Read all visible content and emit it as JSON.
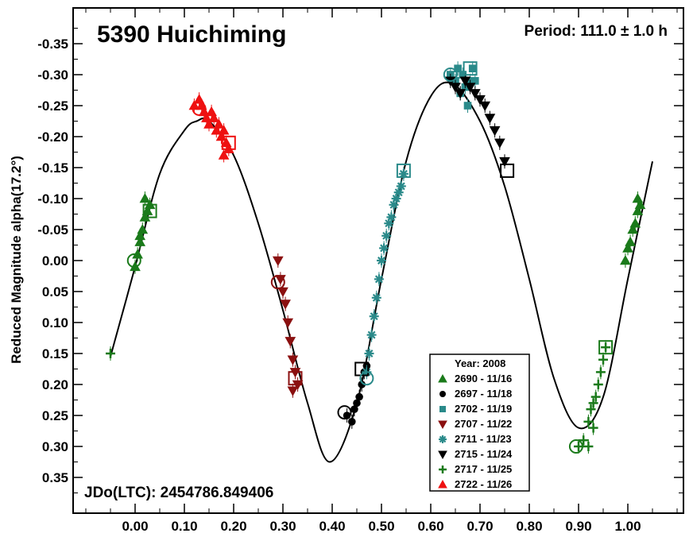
{
  "chart_data": {
    "type": "scatter",
    "title": "5390 Huichiming",
    "period_label": "Period: 111.0 ± 1.0 h",
    "epoch_label": "JDo(LTC): 2454786.849406",
    "ylabel": "Reduced Magnitude alpha(17.2°)",
    "xlabel": "",
    "xlim": [
      -0.12,
      1.12
    ],
    "ylim": [
      0.4,
      -0.4
    ],
    "y_inverted": true,
    "x_ticks": [
      "0.00",
      "0.10",
      "0.20",
      "0.30",
      "0.40",
      "0.50",
      "0.60",
      "0.70",
      "0.80",
      "0.90",
      "1.00"
    ],
    "x_tick_values": [
      0.0,
      0.1,
      0.2,
      0.3,
      0.4,
      0.5,
      0.6,
      0.7,
      0.8,
      0.9,
      1.0
    ],
    "y_ticks": [
      "-0.35",
      "-0.30",
      "-0.25",
      "-0.20",
      "-0.15",
      "-0.10",
      "-0.05",
      "0.00",
      "0.05",
      "0.10",
      "0.15",
      "0.20",
      "0.25",
      "0.30",
      "0.35"
    ],
    "y_tick_values": [
      -0.35,
      -0.3,
      -0.25,
      -0.2,
      -0.15,
      -0.1,
      -0.05,
      0.0,
      0.05,
      0.1,
      0.15,
      0.2,
      0.25,
      0.3,
      0.35
    ],
    "legend": {
      "title": "Year: 2008",
      "placement": "bottom-right",
      "entries": [
        {
          "label": "2690 - 11/16",
          "marker": "triangle-up",
          "color": "#1a7a1a"
        },
        {
          "label": "2697 - 11/18",
          "marker": "circle",
          "color": "#000000"
        },
        {
          "label": "2702 - 11/19",
          "marker": "square",
          "color": "#2a8a8a"
        },
        {
          "label": "2707 - 11/22",
          "marker": "triangle-down",
          "color": "#8b1010"
        },
        {
          "label": "2711 - 11/23",
          "marker": "asterisk",
          "color": "#2a8a8a"
        },
        {
          "label": "2715 - 11/24",
          "marker": "triangle-down",
          "color": "#000000"
        },
        {
          "label": "2717 - 11/25",
          "marker": "plus",
          "color": "#1a7a1a"
        },
        {
          "label": "2722 - 11/26",
          "marker": "triangle-up",
          "color": "#ee1111"
        }
      ]
    },
    "fit_curve": {
      "x": [
        -0.05,
        0.0,
        0.05,
        0.1,
        0.125,
        0.15,
        0.2,
        0.25,
        0.3,
        0.35,
        0.395,
        0.45,
        0.5,
        0.55,
        0.6,
        0.645,
        0.7,
        0.75,
        0.8,
        0.85,
        0.9,
        0.95,
        1.0,
        1.05
      ],
      "y": [
        0.155,
        0.01,
        -0.14,
        -0.21,
        -0.225,
        -0.225,
        -0.17,
        -0.06,
        0.08,
        0.23,
        0.325,
        0.23,
        0.03,
        -0.16,
        -0.265,
        -0.285,
        -0.225,
        -0.12,
        0.03,
        0.19,
        0.27,
        0.22,
        0.03,
        -0.16
      ]
    },
    "series": [
      {
        "name": "2690 - 11/16",
        "marker": "triangle-up",
        "color": "#1a7a1a",
        "points": [
          [
            0.0,
            0.01
          ],
          [
            0.005,
            -0.01
          ],
          [
            0.01,
            -0.03
          ],
          [
            0.015,
            -0.05
          ],
          [
            0.02,
            -0.07
          ],
          [
            0.025,
            -0.08
          ],
          [
            0.03,
            -0.09
          ],
          [
            0.02,
            -0.1
          ],
          [
            0.01,
            -0.04
          ],
          [
            0.995,
            0.0
          ],
          [
            1.0,
            -0.02
          ],
          [
            1.005,
            -0.03
          ],
          [
            1.01,
            -0.05
          ],
          [
            1.015,
            -0.06
          ],
          [
            1.02,
            -0.08
          ],
          [
            1.025,
            -0.09
          ],
          [
            1.02,
            -0.1
          ]
        ]
      },
      {
        "name": "2697 - 11/18",
        "marker": "circle",
        "color": "#000000",
        "points": [
          [
            0.43,
            0.25
          ],
          [
            0.44,
            0.26
          ],
          [
            0.445,
            0.24
          ],
          [
            0.45,
            0.23
          ],
          [
            0.455,
            0.22
          ],
          [
            0.46,
            0.2
          ],
          [
            0.465,
            0.18
          ],
          [
            0.47,
            0.17
          ]
        ]
      },
      {
        "name": "2702 - 11/19",
        "marker": "square",
        "color": "#2a8a8a",
        "points": [
          [
            0.64,
            -0.3
          ],
          [
            0.65,
            -0.29
          ],
          [
            0.655,
            -0.31
          ],
          [
            0.66,
            -0.27
          ],
          [
            0.665,
            -0.3
          ],
          [
            0.67,
            -0.28
          ],
          [
            0.675,
            -0.25
          ],
          [
            0.68,
            -0.29
          ],
          [
            0.685,
            -0.31
          ],
          [
            0.69,
            -0.29
          ]
        ]
      },
      {
        "name": "2707 - 11/22",
        "marker": "triangle-down",
        "color": "#8b1010",
        "points": [
          [
            0.29,
            0.0
          ],
          [
            0.295,
            0.03
          ],
          [
            0.3,
            0.05
          ],
          [
            0.305,
            0.07
          ],
          [
            0.31,
            0.1
          ],
          [
            0.315,
            0.13
          ],
          [
            0.32,
            0.16
          ],
          [
            0.325,
            0.18
          ],
          [
            0.33,
            0.2
          ],
          [
            0.32,
            0.21
          ]
        ]
      },
      {
        "name": "2711 - 11/23",
        "marker": "asterisk",
        "color": "#2a8a8a",
        "points": [
          [
            0.47,
            0.18
          ],
          [
            0.475,
            0.15
          ],
          [
            0.48,
            0.12
          ],
          [
            0.485,
            0.09
          ],
          [
            0.49,
            0.06
          ],
          [
            0.495,
            0.03
          ],
          [
            0.5,
            0.0
          ],
          [
            0.505,
            -0.02
          ],
          [
            0.51,
            -0.04
          ],
          [
            0.515,
            -0.06
          ],
          [
            0.52,
            -0.07
          ],
          [
            0.525,
            -0.09
          ],
          [
            0.53,
            -0.1
          ],
          [
            0.535,
            -0.11
          ],
          [
            0.54,
            -0.12
          ],
          [
            0.545,
            -0.14
          ]
        ]
      },
      {
        "name": "2715 - 11/24",
        "marker": "triangle-down",
        "color": "#000000",
        "points": [
          [
            0.64,
            -0.29
          ],
          [
            0.65,
            -0.28
          ],
          [
            0.66,
            -0.27
          ],
          [
            0.67,
            -0.29
          ],
          [
            0.68,
            -0.28
          ],
          [
            0.69,
            -0.27
          ],
          [
            0.7,
            -0.26
          ],
          [
            0.71,
            -0.25
          ],
          [
            0.72,
            -0.23
          ],
          [
            0.73,
            -0.21
          ],
          [
            0.74,
            -0.19
          ],
          [
            0.75,
            -0.16
          ]
        ]
      },
      {
        "name": "2717 - 11/25",
        "marker": "plus",
        "color": "#1a7a1a",
        "points": [
          [
            -0.05,
            0.15
          ],
          [
            0.9,
            0.3
          ],
          [
            0.91,
            0.29
          ],
          [
            0.92,
            0.26
          ],
          [
            0.925,
            0.24
          ],
          [
            0.93,
            0.23
          ],
          [
            0.935,
            0.22
          ],
          [
            0.94,
            0.2
          ],
          [
            0.945,
            0.18
          ],
          [
            0.95,
            0.16
          ],
          [
            0.955,
            0.14
          ],
          [
            0.93,
            0.27
          ],
          [
            0.92,
            0.3
          ]
        ]
      },
      {
        "name": "2722 - 11/26",
        "marker": "triangle-up",
        "color": "#ee1111",
        "points": [
          [
            0.12,
            -0.25
          ],
          [
            0.13,
            -0.26
          ],
          [
            0.135,
            -0.25
          ],
          [
            0.14,
            -0.24
          ],
          [
            0.145,
            -0.23
          ],
          [
            0.15,
            -0.22
          ],
          [
            0.155,
            -0.24
          ],
          [
            0.16,
            -0.23
          ],
          [
            0.165,
            -0.21
          ],
          [
            0.17,
            -0.22
          ],
          [
            0.175,
            -0.2
          ],
          [
            0.18,
            -0.21
          ],
          [
            0.185,
            -0.19
          ],
          [
            0.19,
            -0.18
          ],
          [
            0.18,
            -0.17
          ]
        ]
      }
    ],
    "first_last_markers": [
      {
        "x": -0.002,
        "y": 0.0,
        "shape": "circle",
        "color": "#1a7a1a"
      },
      {
        "x": 0.03,
        "y": -0.08,
        "shape": "square",
        "color": "#1a7a1a"
      },
      {
        "x": 0.13,
        "y": -0.245,
        "shape": "circle",
        "color": "#ee1111"
      },
      {
        "x": 0.19,
        "y": -0.19,
        "shape": "square",
        "color": "#ee1111"
      },
      {
        "x": 0.29,
        "y": 0.035,
        "shape": "circle",
        "color": "#8b1010"
      },
      {
        "x": 0.325,
        "y": 0.19,
        "shape": "square",
        "color": "#8b1010"
      },
      {
        "x": 0.425,
        "y": 0.245,
        "shape": "circle",
        "color": "#000000"
      },
      {
        "x": 0.46,
        "y": 0.175,
        "shape": "square",
        "color": "#000000"
      },
      {
        "x": 0.47,
        "y": 0.19,
        "shape": "circle",
        "color": "#2a8a8a"
      },
      {
        "x": 0.545,
        "y": -0.145,
        "shape": "square",
        "color": "#2a8a8a"
      },
      {
        "x": 0.64,
        "y": -0.3,
        "shape": "circle",
        "color": "#2a8a8a"
      },
      {
        "x": 0.68,
        "y": -0.31,
        "shape": "square",
        "color": "#2a8a8a"
      },
      {
        "x": 0.755,
        "y": -0.145,
        "shape": "square",
        "color": "#000000"
      },
      {
        "x": 0.895,
        "y": 0.3,
        "shape": "circle",
        "color": "#1a7a1a"
      },
      {
        "x": 0.955,
        "y": 0.14,
        "shape": "square",
        "color": "#1a7a1a"
      }
    ]
  }
}
